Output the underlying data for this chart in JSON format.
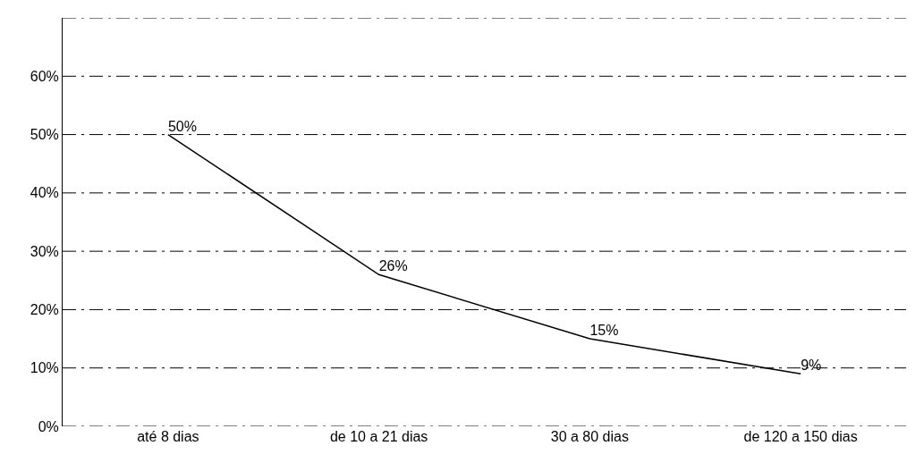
{
  "chart_data": {
    "type": "line",
    "categories": [
      "até 8 dias",
      "de 10 a 21 dias",
      "30 a 80 dias",
      "de 120 a 150 dias"
    ],
    "series": [
      {
        "color": "#000000",
        "values": [
          50,
          26,
          15,
          9
        ]
      }
    ],
    "ylim": [
      0,
      70
    ],
    "yticks": [
      {
        "value": 0,
        "label": "0%"
      },
      {
        "value": 10,
        "label": "10%"
      },
      {
        "value": 20,
        "label": "20%"
      },
      {
        "value": 30,
        "label": "30%"
      },
      {
        "value": 40,
        "label": "40%"
      },
      {
        "value": 50,
        "label": "50%"
      },
      {
        "value": 60,
        "label": "60%"
      },
      {
        "value": 70,
        "label": null
      }
    ],
    "grid": "y",
    "marker": "none",
    "line_style": "solid",
    "legend": false,
    "value_labels": [
      "50%",
      "26%",
      "15%",
      "9%"
    ]
  }
}
